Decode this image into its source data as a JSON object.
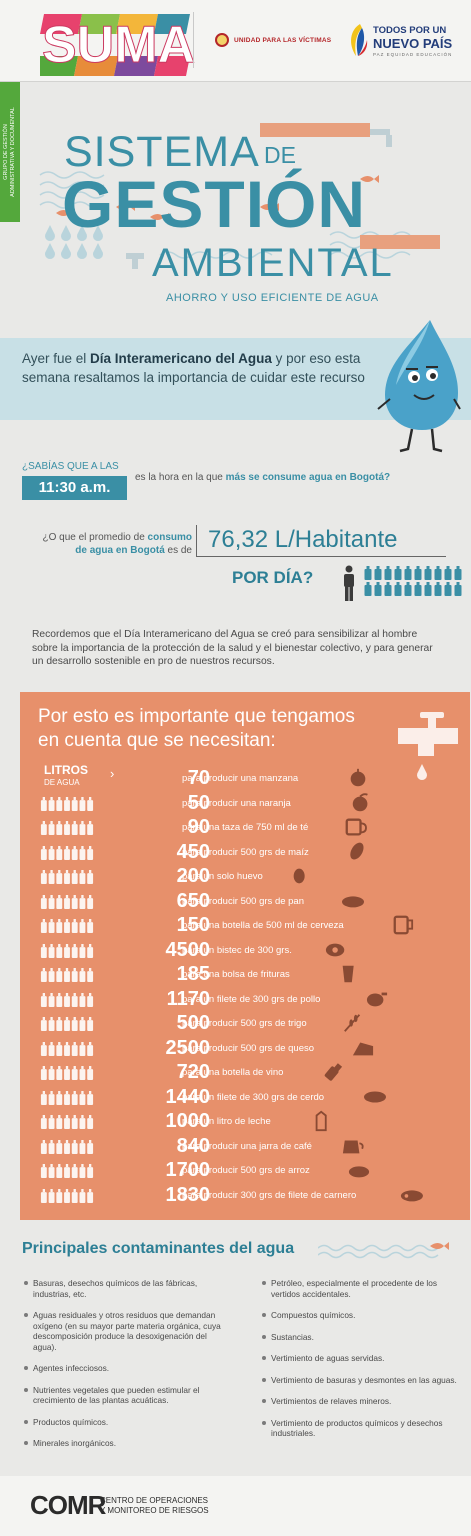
{
  "header": {
    "suma": "SUMA",
    "victimas": "UNIDAD PARA LAS VÍCTIMAS",
    "pais_line1": "TODOS POR UN",
    "pais_line2": "NUEVO PAÍS",
    "pais_line3": "PAZ  EQUIDAD  EDUCACIÓN"
  },
  "side_tab": {
    "line1": "Grupo de Gestión",
    "line2": "Administrativa y Documental"
  },
  "title": {
    "sistema": "SISTEMA",
    "de": "DE",
    "gestion": "GESTIÓN",
    "ambiental": "AMBIENTAL",
    "subtitle": "AHORRO Y USO EFICIENTE DE AGUA"
  },
  "intro": {
    "part1": "Ayer fue el ",
    "bold": "Día Interamericano del Agua",
    "part2": " y por eso esta semana resaltamos la importancia de cuidar este recurso"
  },
  "fact1": {
    "question": "¿SABÍAS QUE A LAS",
    "time": "11:30 a.m.",
    "text": "es la hora en la que ",
    "bold": "más se consume agua en Bogotá?"
  },
  "fact2": {
    "part1": "¿O que el promedio de ",
    "bold1": "consumo",
    "bold2": "de agua en Bogotá",
    "part2": " es de",
    "value": "76,32 L/Habitante",
    "per_day": "POR DÍA?"
  },
  "recall": "Recordemos que el Día Interamericano del Agua se creó para sensibilizar al hombre sobre la importancia de la protección de la salud y el bienestar colectivo, y para generar un desarrollo sostenible en pro de nuestros recursos.",
  "orange": {
    "heading": "Por esto es importante que tengamos en cuenta que se necesitan:",
    "litros": "LITROS",
    "de_agua": "DE AGUA",
    "chevron": "›",
    "rows": [
      {
        "value": "70",
        "desc": "para producir una manzana",
        "icon": "apple-icon"
      },
      {
        "value": "50",
        "desc": "para producir una naranja",
        "icon": "orange-fruit-icon"
      },
      {
        "value": "90",
        "desc": "para una taza de 750 ml de té",
        "icon": "tea-cup-icon"
      },
      {
        "value": "450",
        "desc": "para producir 500 grs de maíz",
        "icon": "corn-icon"
      },
      {
        "value": "200",
        "desc": "para un solo huevo",
        "icon": "egg-icon"
      },
      {
        "value": "650",
        "desc": "para producir 500 grs de pan",
        "icon": "bread-icon"
      },
      {
        "value": "150",
        "desc": "para una botella de 500 ml de cerveza",
        "icon": "beer-icon"
      },
      {
        "value": "4500",
        "desc": "para un bistec de 300 grs.",
        "icon": "steak-icon"
      },
      {
        "value": "185",
        "desc": "para una bolsa de frituras",
        "icon": "chips-icon"
      },
      {
        "value": "1170",
        "desc": "para un filete de 300 grs de pollo",
        "icon": "chicken-icon"
      },
      {
        "value": "500",
        "desc": "para producir 500 grs de trigo",
        "icon": "wheat-icon"
      },
      {
        "value": "2500",
        "desc": "para producir 500 grs de queso",
        "icon": "cheese-icon"
      },
      {
        "value": "720",
        "desc": "para una botella de vino",
        "icon": "wine-icon"
      },
      {
        "value": "1440",
        "desc": "para un filete de 300 grs de cerdo",
        "icon": "pork-icon"
      },
      {
        "value": "1000",
        "desc": "para un litro de leche",
        "icon": "milk-icon"
      },
      {
        "value": "840",
        "desc": "para producir una jarra de café",
        "icon": "coffee-pot-icon"
      },
      {
        "value": "1700",
        "desc": "para producir 500 grs de arroz",
        "icon": "rice-icon"
      },
      {
        "value": "1830",
        "desc": "para producir 300 grs de filete de carnero",
        "icon": "lamb-icon"
      }
    ]
  },
  "contaminants": {
    "title": "Principales contaminantes del agua",
    "left": [
      "Basuras, desechos químicos de las fábricas, industrias, etc.",
      "Aguas residuales y otros residuos que demandan oxígeno (en su mayor parte materia orgánica, cuya descomposición produce la desoxigenación del agua).",
      "Agentes infecciosos.",
      "Nutrientes vegetales que pueden estimular el crecimiento de las plantas acuáticas.",
      "Productos químicos.",
      "Minerales inorgánicos."
    ],
    "right": [
      "Petróleo, especialmente el procedente de los vertidos accidentales.",
      "Compuestos químicos.",
      "Sustancias.",
      "Vertimiento de aguas servidas.",
      "Vertimiento de basuras y desmontes en las aguas.",
      "Vertimientos de relaves mineros.",
      "Vertimiento de productos químicos y desechos industriales."
    ]
  },
  "footer": {
    "logo": "COMR",
    "line1": "CENTRO DE OPERACIONES",
    "line2": "Y MONITOREO DE RIESGOS"
  },
  "colors": {
    "teal": "#3a8fa5",
    "orange": "#e7906b",
    "green": "#54a83c"
  }
}
